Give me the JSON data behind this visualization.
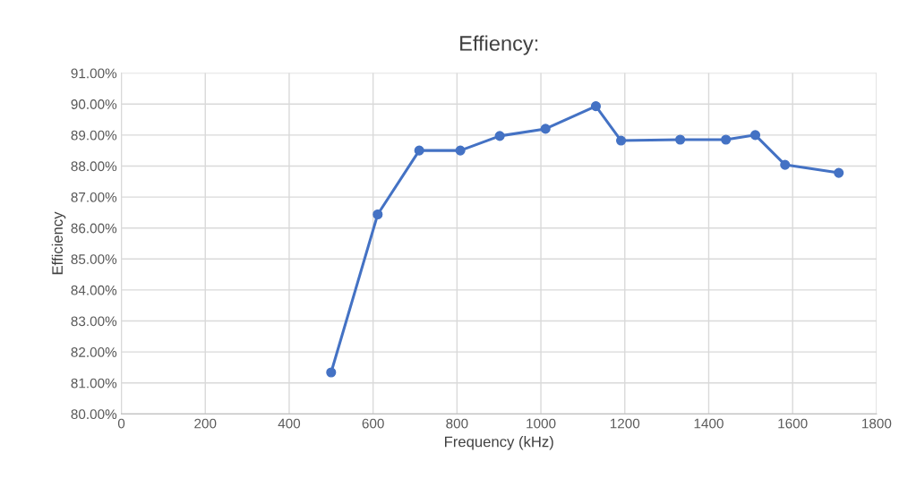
{
  "chart_data": {
    "type": "line",
    "title": "Effiency:",
    "xlabel": "Frequency (kHz)",
    "ylabel": "Efficiency",
    "x": [
      500,
      611,
      710,
      808,
      902,
      1011,
      1131,
      1191,
      1332,
      1441,
      1511,
      1582,
      1710
    ],
    "series": [
      {
        "color": "#4472c4",
        "values": [
          81.34,
          86.44,
          88.5,
          88.5,
          88.97,
          89.2,
          89.93,
          88.82,
          88.85,
          88.85,
          89.0,
          88.04,
          87.78
        ]
      }
    ],
    "xlim": [
      0,
      1800
    ],
    "xticks": [
      0,
      200,
      400,
      600,
      800,
      1000,
      1200,
      1400,
      1600,
      1800
    ],
    "ylim": [
      80,
      91
    ],
    "yticks": [
      {
        "value": 80,
        "label": "80.00%"
      },
      {
        "value": 81,
        "label": "81.00%"
      },
      {
        "value": 82,
        "label": "82.00%"
      },
      {
        "value": 83,
        "label": "83.00%"
      },
      {
        "value": 84,
        "label": "84.00%"
      },
      {
        "value": 85,
        "label": "85.00%"
      },
      {
        "value": 86,
        "label": "86.00%"
      },
      {
        "value": 87,
        "label": "87.00%"
      },
      {
        "value": 88,
        "label": "88.00%"
      },
      {
        "value": 89,
        "label": "89.00%"
      },
      {
        "value": 90,
        "label": "90.00%"
      },
      {
        "value": 91,
        "label": "91.00%"
      }
    ],
    "grid": true,
    "marker": "circle",
    "line_style": "solid"
  }
}
